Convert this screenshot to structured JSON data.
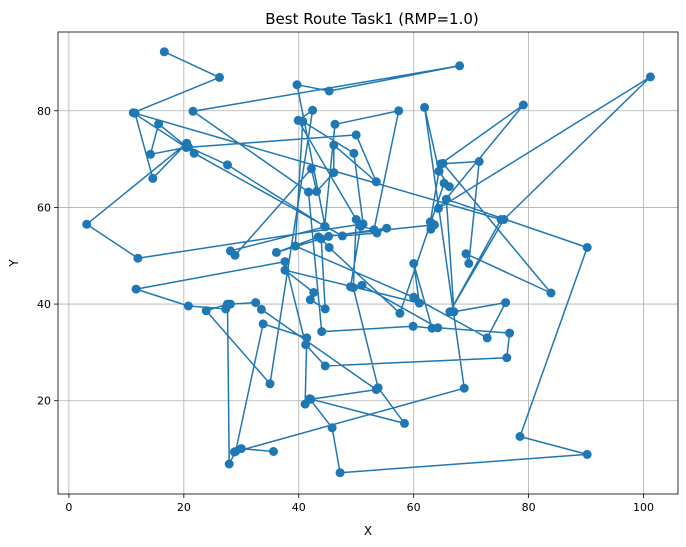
{
  "chart_data": {
    "type": "line",
    "title": "Best Route Task1 (RMP=1.0)",
    "xlabel": "X",
    "ylabel": "Y",
    "xlim": [
      -1.9,
      106.0
    ],
    "ylim": [
      0.7,
      96.3
    ],
    "xticks": [
      0,
      20,
      40,
      60,
      80,
      100
    ],
    "yticks": [
      20,
      40,
      60,
      80
    ],
    "grid": true,
    "color": "#1f77b4",
    "markers": "circle",
    "route": [
      [
        16.6,
        92.2
      ],
      [
        26.2,
        86.9
      ],
      [
        11.2,
        79.6
      ],
      [
        20.4,
        72.4
      ],
      [
        50.0,
        75.0
      ],
      [
        53.5,
        65.3
      ],
      [
        46.1,
        72.9
      ],
      [
        46.1,
        67.2
      ],
      [
        43.1,
        63.3
      ],
      [
        42.2,
        68.0
      ],
      [
        28.9,
        50.1
      ],
      [
        28.1,
        51.0
      ],
      [
        44.6,
        56.0
      ],
      [
        39.7,
        85.4
      ],
      [
        45.3,
        84.1
      ],
      [
        68.0,
        89.3
      ],
      [
        21.6,
        79.9
      ],
      [
        41.7,
        63.2
      ],
      [
        44.0,
        34.3
      ],
      [
        59.9,
        35.4
      ],
      [
        63.2,
        35.0
      ],
      [
        60.0,
        48.4
      ],
      [
        61.0,
        40.2
      ],
      [
        37.6,
        47.0
      ],
      [
        42.6,
        42.4
      ],
      [
        42.0,
        40.9
      ],
      [
        44.6,
        39.0
      ],
      [
        43.9,
        53.5
      ],
      [
        45.3,
        51.7
      ],
      [
        57.6,
        38.1
      ],
      [
        65.3,
        65.0
      ],
      [
        66.2,
        64.3
      ],
      [
        64.4,
        67.5
      ],
      [
        62.9,
        57.0
      ],
      [
        63.0,
        55.5
      ],
      [
        63.6,
        56.4
      ],
      [
        43.4,
        53.9
      ],
      [
        36.1,
        50.7
      ],
      [
        45.2,
        54.0
      ],
      [
        55.3,
        55.7
      ],
      [
        53.6,
        54.7
      ],
      [
        47.6,
        54.1
      ],
      [
        21.8,
        71.2
      ],
      [
        15.6,
        77.3
      ],
      [
        14.2,
        71.0
      ],
      [
        20.8,
        72.5
      ],
      [
        27.6,
        68.8
      ],
      [
        44.5,
        56.1
      ],
      [
        46.3,
        77.2
      ],
      [
        57.4,
        80.0
      ],
      [
        53.1,
        55.4
      ],
      [
        50.8,
        56.1
      ],
      [
        49.0,
        43.6
      ],
      [
        51.0,
        43.9
      ],
      [
        64.2,
        35.1
      ],
      [
        76.7,
        34.0
      ],
      [
        76.2,
        28.9
      ],
      [
        44.6,
        27.2
      ],
      [
        41.2,
        31.6
      ],
      [
        37.6,
        48.8
      ],
      [
        11.7,
        43.1
      ],
      [
        20.8,
        39.6
      ],
      [
        27.3,
        39.0
      ],
      [
        28.1,
        40.0
      ],
      [
        32.5,
        40.3
      ],
      [
        33.5,
        38.9
      ],
      [
        53.5,
        22.3
      ],
      [
        42.1,
        20.3
      ],
      [
        41.1,
        19.3
      ],
      [
        41.4,
        33.0
      ],
      [
        33.8,
        35.9
      ],
      [
        29.0,
        9.5
      ],
      [
        27.9,
        6.9
      ],
      [
        27.6,
        40.0
      ],
      [
        23.9,
        38.6
      ],
      [
        35.0,
        23.5
      ],
      [
        42.4,
        80.1
      ],
      [
        39.9,
        78.0
      ],
      [
        50.0,
        57.5
      ],
      [
        49.5,
        43.4
      ],
      [
        53.8,
        22.7
      ],
      [
        58.4,
        15.3
      ],
      [
        41.9,
        20.4
      ],
      [
        45.8,
        14.4
      ],
      [
        47.2,
        5.1
      ],
      [
        90.2,
        8.9
      ],
      [
        78.5,
        12.6
      ],
      [
        90.2,
        51.7
      ],
      [
        65.7,
        61.7
      ],
      [
        67.0,
        38.4
      ],
      [
        76.0,
        40.3
      ],
      [
        72.8,
        33.0
      ],
      [
        60.0,
        41.4
      ],
      [
        39.4,
        52.0
      ],
      [
        40.7,
        77.8
      ],
      [
        49.6,
        71.2
      ],
      [
        51.2,
        56.6
      ],
      [
        12.0,
        49.5
      ],
      [
        3.1,
        56.5
      ],
      [
        20.5,
        73.3
      ],
      [
        14.6,
        66.0
      ],
      [
        11.5,
        79.5
      ],
      [
        75.2,
        57.5
      ],
      [
        66.3,
        38.4
      ],
      [
        75.7,
        57.5
      ],
      [
        101.2,
        87.0
      ],
      [
        64.3,
        59.8
      ],
      [
        79.1,
        81.2
      ],
      [
        64.7,
        69.0
      ],
      [
        71.4,
        69.5
      ],
      [
        69.6,
        48.4
      ],
      [
        69.1,
        50.4
      ],
      [
        83.9,
        42.3
      ],
      [
        65.1,
        69.1
      ],
      [
        64.4,
        67.5
      ],
      [
        61.9,
        80.7
      ],
      [
        68.8,
        22.6
      ],
      [
        28.8,
        9.4
      ],
      [
        30.0,
        10.1
      ],
      [
        35.6,
        9.5
      ]
    ]
  }
}
